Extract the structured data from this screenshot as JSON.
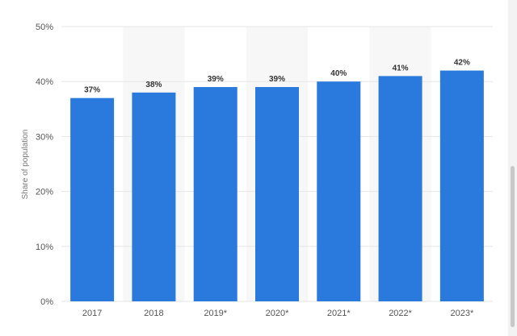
{
  "chart_data": {
    "type": "bar",
    "categories": [
      "2017",
      "2018",
      "2019*",
      "2020*",
      "2021*",
      "2022*",
      "2023*"
    ],
    "values": [
      37,
      38,
      39,
      39,
      40,
      41,
      42
    ],
    "data_labels": [
      "37%",
      "38%",
      "39%",
      "39%",
      "40%",
      "41%",
      "42%"
    ],
    "title": "",
    "xlabel": "",
    "ylabel": "Share of population",
    "ylim": [
      0,
      50
    ],
    "yticks": [
      0,
      10,
      20,
      30,
      40,
      50
    ],
    "ytick_labels": [
      "0%",
      "10%",
      "20%",
      "30%",
      "40%",
      "50%"
    ],
    "grid": true,
    "legend": "none",
    "bar_color": "#2a79dd",
    "band_color": "#f7f7f7",
    "grid_color": "#e6e6e6"
  }
}
